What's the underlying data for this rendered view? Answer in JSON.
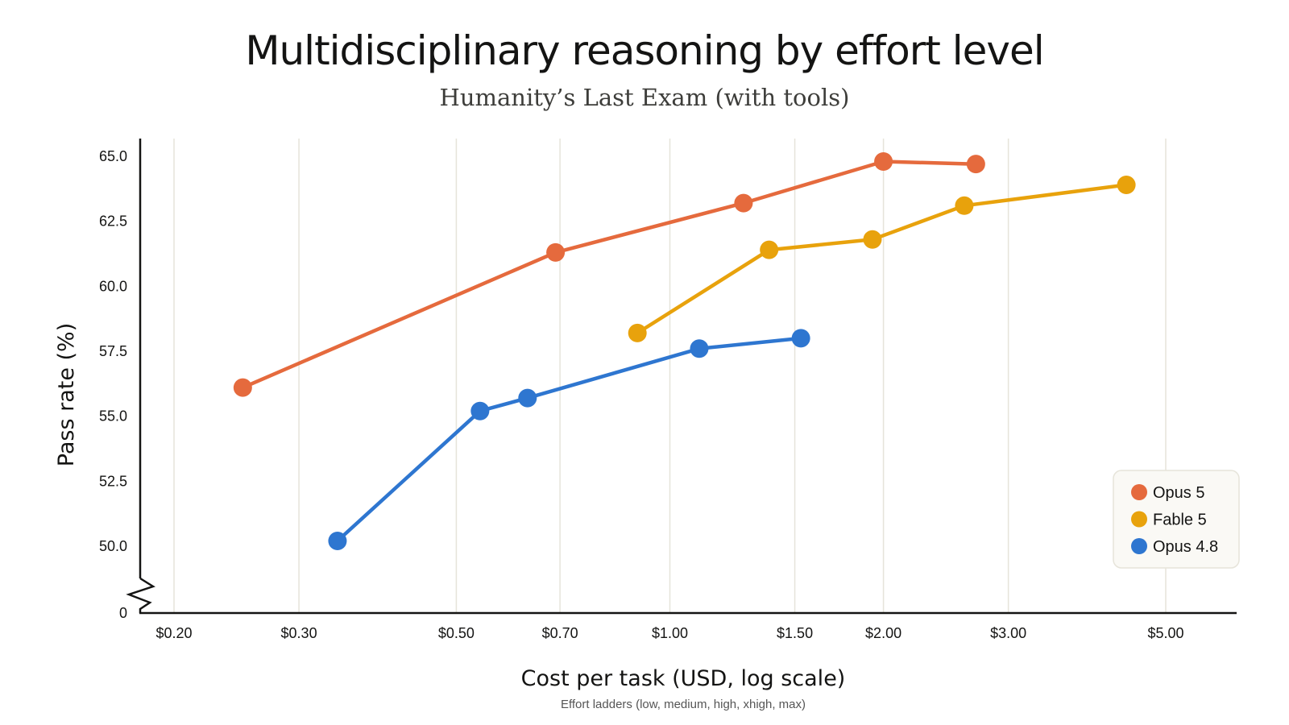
{
  "chart_data": {
    "type": "line",
    "title": "Multidisciplinary reasoning by effort level",
    "subtitle": "Humanity’s Last Exam (with tools)",
    "xlabel": "Cost per task (USD, log scale)",
    "x_note": "Effort ladders (low, medium, high, xhigh, max)",
    "ylabel": "Pass rate (%)",
    "x_scale": "log",
    "xlim": [
      0.18,
      6.0
    ],
    "ylim": [
      50.0,
      65.0
    ],
    "y_axis_break": true,
    "y_axis_floor_label": "0",
    "x_ticks": [
      {
        "value": 0.2,
        "label": "$0.20"
      },
      {
        "value": 0.3,
        "label": "$0.30"
      },
      {
        "value": 0.5,
        "label": "$0.50"
      },
      {
        "value": 0.7,
        "label": "$0.70"
      },
      {
        "value": 1.0,
        "label": "$1.00"
      },
      {
        "value": 1.5,
        "label": "$1.50"
      },
      {
        "value": 2.0,
        "label": "$2.00"
      },
      {
        "value": 3.0,
        "label": "$3.00"
      },
      {
        "value": 5.0,
        "label": "$5.00"
      }
    ],
    "y_ticks": [
      {
        "value": 50.0,
        "label": "50.0"
      },
      {
        "value": 52.5,
        "label": "52.5"
      },
      {
        "value": 55.0,
        "label": "55.0"
      },
      {
        "value": 57.5,
        "label": "57.5"
      },
      {
        "value": 60.0,
        "label": "60.0"
      },
      {
        "value": 62.5,
        "label": "62.5"
      },
      {
        "value": 65.0,
        "label": "65.0"
      }
    ],
    "grid": "vertical",
    "legend_position": "bottom-right",
    "series": [
      {
        "name": "Opus 5",
        "color": "#e56a3d",
        "x": [
          0.25,
          0.69,
          1.27,
          2.0,
          2.7
        ],
        "y": [
          56.1,
          61.3,
          63.2,
          64.8,
          64.7
        ]
      },
      {
        "name": "Fable 5",
        "color": "#e8a20c",
        "x": [
          0.9,
          1.38,
          1.93,
          2.6,
          4.4
        ],
        "y": [
          58.2,
          61.4,
          61.8,
          63.1,
          63.9
        ]
      },
      {
        "name": "Opus 4.8",
        "color": "#2e76d0",
        "x": [
          0.34,
          0.54,
          0.63,
          1.1,
          1.53
        ],
        "y": [
          50.2,
          55.2,
          55.7,
          57.6,
          58.0
        ]
      }
    ]
  }
}
